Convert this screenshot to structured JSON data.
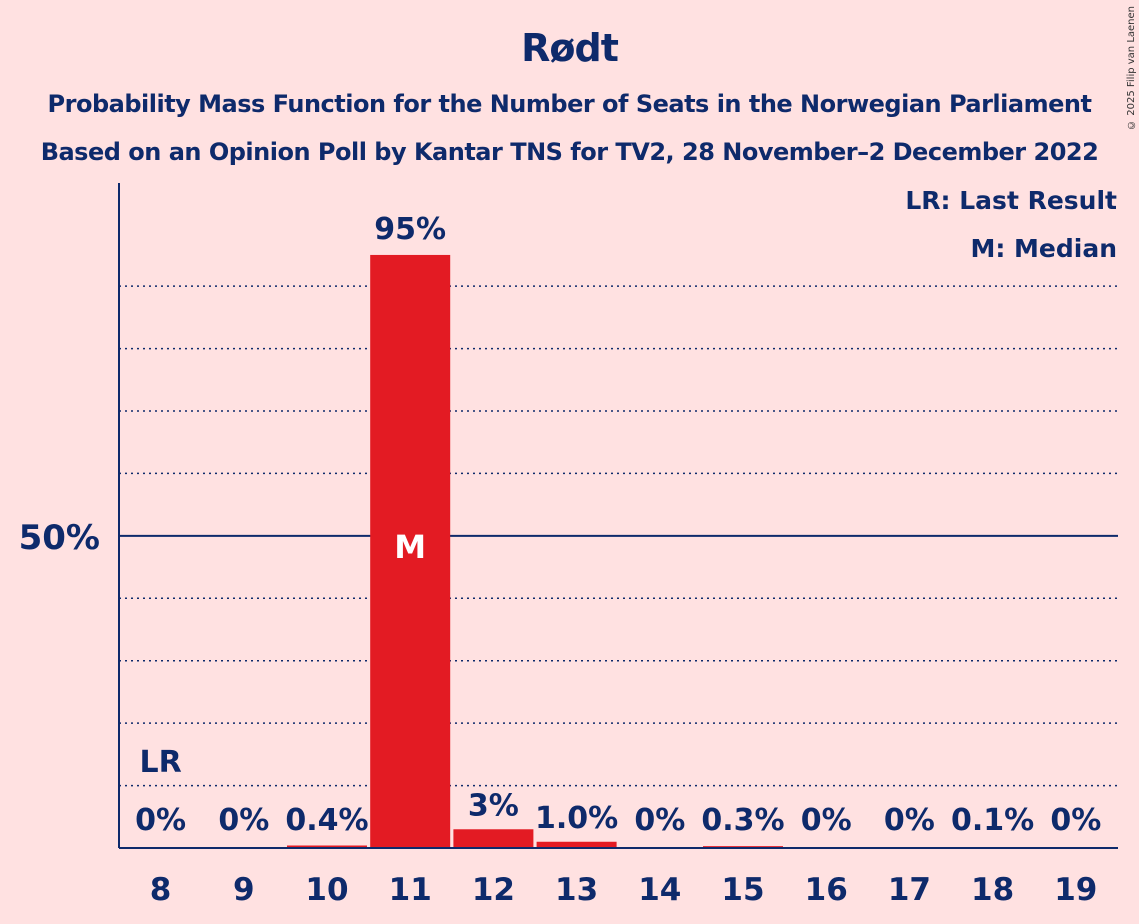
{
  "title": "Rødt",
  "subtitle_line1": "Probability Mass Function for the Number of Seats in the Norwegian Parliament",
  "subtitle_line2": "Based on an Opinion Poll by Kantar TNS for TV2, 28 November–2 December 2022",
  "copyright": "© 2025 Filip van Laenen",
  "legend": {
    "last_result": "LR: Last Result",
    "median": "M: Median"
  },
  "colors": {
    "background": "#FFE1E1",
    "bar": "#E31B23",
    "text": "#0E2A6B"
  },
  "chart_data": {
    "type": "bar",
    "title": "Rødt",
    "xlabel": "",
    "ylabel": "",
    "categories": [
      "8",
      "9",
      "10",
      "11",
      "12",
      "13",
      "14",
      "15",
      "16",
      "17",
      "18",
      "19"
    ],
    "values": [
      0,
      0,
      0.4,
      95,
      3,
      1.0,
      0,
      0.3,
      0,
      0,
      0.1,
      0
    ],
    "labels": [
      "0%",
      "0%",
      "0.4%",
      "95%",
      "3%",
      "1.0%",
      "0%",
      "0.3%",
      "0%",
      "0%",
      "0.1%",
      "0%"
    ],
    "ylim": [
      0,
      103
    ],
    "y_tick_label": {
      "value": 50,
      "text": "50%"
    },
    "gridlines": [
      10,
      20,
      30,
      40,
      60,
      70,
      80,
      90
    ],
    "last_result": {
      "category": "8",
      "label": "LR"
    },
    "median": {
      "category": "11",
      "label": "M"
    },
    "legend_position": "top-right"
  }
}
